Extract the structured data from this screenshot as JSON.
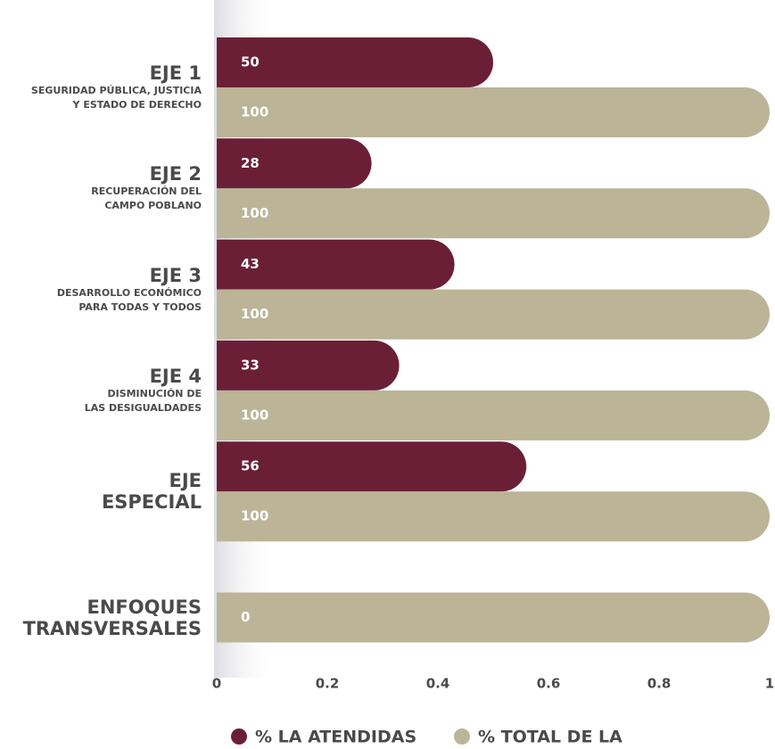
{
  "chart_data": {
    "type": "bar",
    "orientation": "horizontal",
    "categories": [
      "EJE 1",
      "EJE 2",
      "EJE 3",
      "EJE 4",
      "EJE ESPECIAL",
      "ENFOQUES TRANSVERSALES"
    ],
    "category_descriptions": [
      [
        "SEGURIDAD PÚBLICA, JUSTICIA",
        "Y ESTADO DE DERECHO"
      ],
      [
        "RECUPERACIÓN DEL",
        "CAMPO POBLANO"
      ],
      [
        "DESARROLLO ECONÓMICO",
        "PARA TODAS Y TODOS"
      ],
      [
        "DISMINUCIÓN DE",
        "LAS DESIGUALDADES"
      ],
      null,
      null
    ],
    "series": [
      {
        "name": "% LA ATENDIDAS",
        "color": "#6b1f37",
        "values": [
          0.5,
          0.28,
          0.43,
          0.33,
          0.56,
          0
        ],
        "value_labels": [
          "50",
          "28",
          "43",
          "33",
          "56",
          "0"
        ]
      },
      {
        "name": "% TOTAL DE LA",
        "color": "#bcb497",
        "values": [
          1,
          1,
          1,
          1,
          1,
          1
        ],
        "value_labels": [
          "100",
          "100",
          "100",
          "100",
          "100",
          null
        ]
      }
    ],
    "xlim": [
      0,
      1
    ],
    "xticks": [
      0,
      0.2,
      0.4,
      0.6,
      0.8,
      1
    ],
    "legend": "bottom"
  }
}
